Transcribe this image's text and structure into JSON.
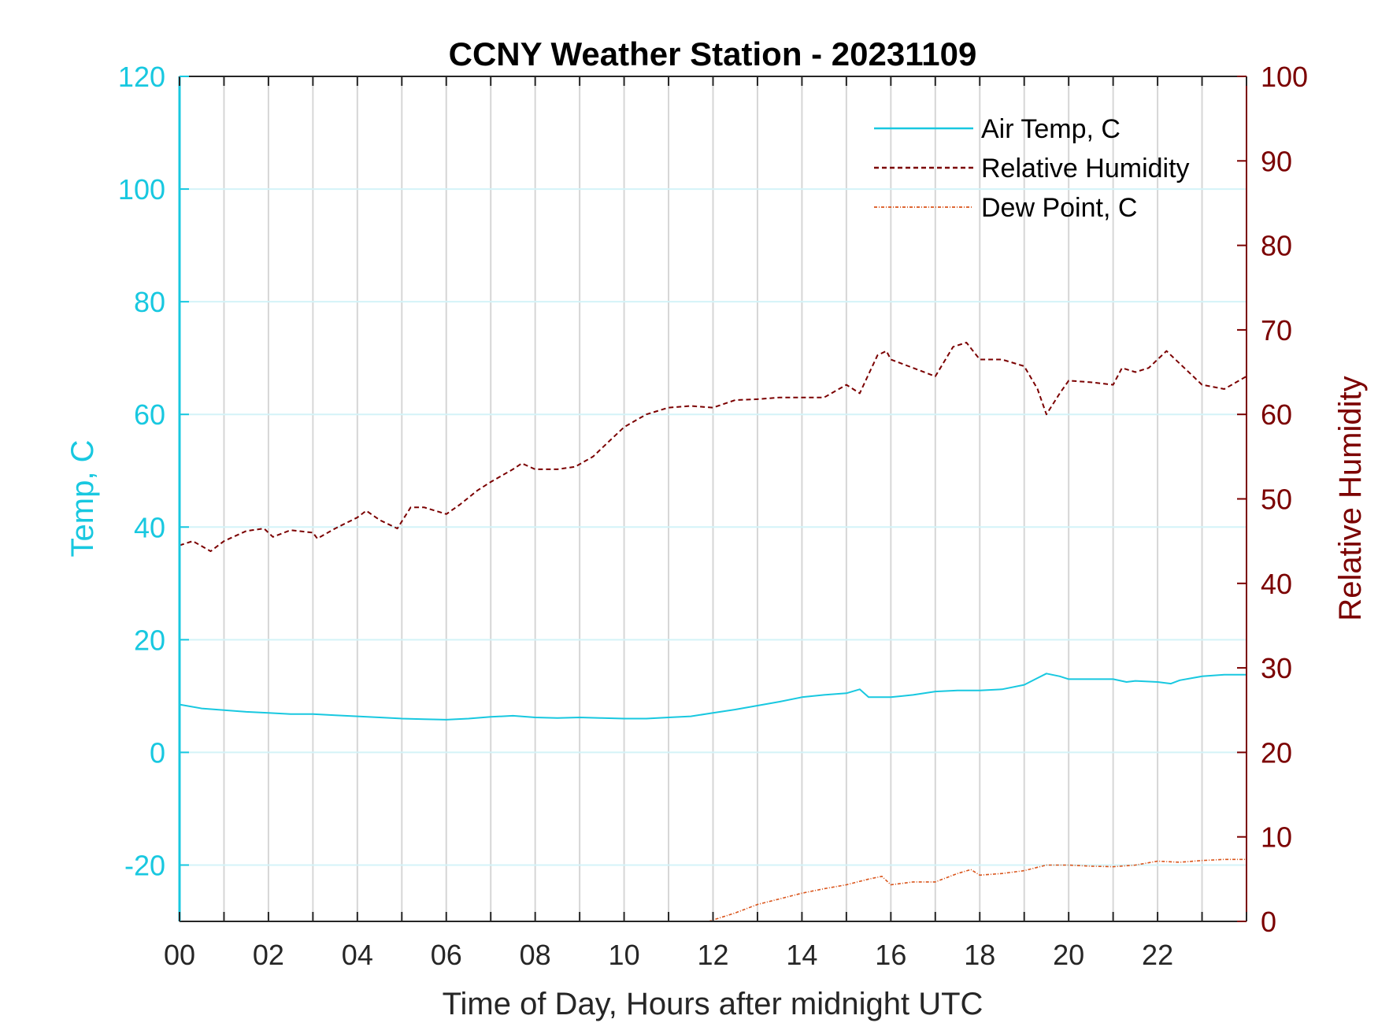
{
  "chart_data": {
    "type": "line",
    "title": "CCNY Weather Station - 20231109",
    "xlabel": "Time of Day, Hours after midnight UTC",
    "ylabel_left": "Temp, C",
    "ylabel_right": "Relative Humidity",
    "xlim": [
      0,
      24
    ],
    "ylim_left": [
      -30,
      120
    ],
    "ylim_right": [
      0,
      100
    ],
    "x_ticks": [
      "00",
      "02",
      "04",
      "06",
      "08",
      "10",
      "12",
      "14",
      "16",
      "18",
      "20",
      "22"
    ],
    "y_ticks_left": [
      "-20",
      "0",
      "20",
      "40",
      "60",
      "80",
      "100",
      "120"
    ],
    "y_ticks_right": [
      "0",
      "10",
      "20",
      "30",
      "40",
      "50",
      "60",
      "70",
      "80",
      "90",
      "100"
    ],
    "grid": {
      "vertical_every_hours": 1,
      "horizontal_left_ticks": true
    },
    "legend_position": "top-right",
    "colors": {
      "air_temp": "#18c8e0",
      "relative_humidity": "#7b0000",
      "dew_point": "#d95319",
      "left_axis": "#18c8e0",
      "right_axis": "#7b0000"
    },
    "series": [
      {
        "name": "Air Temp, C",
        "axis": "left",
        "style": "solid",
        "x": [
          0,
          0.5,
          1,
          1.5,
          2,
          2.5,
          3,
          3.5,
          4,
          4.5,
          5,
          5.5,
          6,
          6.5,
          7,
          7.5,
          8,
          8.5,
          9,
          9.5,
          10,
          10.5,
          11,
          11.5,
          12,
          12.5,
          13,
          13.5,
          14,
          14.5,
          15,
          15.3,
          15.5,
          16,
          16.5,
          17,
          17.5,
          18,
          18.5,
          19,
          19.3,
          19.5,
          19.8,
          20,
          20.5,
          21,
          21.3,
          21.5,
          22,
          22.3,
          22.5,
          23,
          23.5,
          24
        ],
        "y": [
          8.5,
          7.8,
          7.5,
          7.2,
          7.0,
          6.8,
          6.8,
          6.6,
          6.4,
          6.2,
          6.0,
          5.9,
          5.8,
          6.0,
          6.3,
          6.5,
          6.2,
          6.1,
          6.2,
          6.1,
          6.0,
          6.0,
          6.2,
          6.4,
          7.0,
          7.6,
          8.3,
          9.0,
          9.8,
          10.2,
          10.5,
          11.2,
          9.8,
          9.8,
          10.2,
          10.8,
          11.0,
          11.0,
          11.2,
          12.0,
          13.2,
          14.0,
          13.5,
          13.0,
          13.0,
          13.0,
          12.5,
          12.7,
          12.5,
          12.2,
          12.8,
          13.5,
          13.8,
          13.8
        ]
      },
      {
        "name": "Relative Humidity",
        "axis": "right",
        "style": "dashed",
        "x": [
          0,
          0.3,
          0.7,
          1,
          1.5,
          1.9,
          2.1,
          2.5,
          3,
          3.1,
          3.5,
          4,
          4.2,
          4.5,
          4.9,
          5.2,
          5.5,
          6,
          6.3,
          6.7,
          7,
          7.5,
          7.7,
          8,
          8.5,
          8.9,
          9.3,
          9.7,
          10,
          10.5,
          11,
          11.5,
          12,
          12.5,
          13,
          13.5,
          14,
          14.5,
          15,
          15.3,
          15.7,
          15.9,
          16,
          16.5,
          17,
          17.4,
          17.7,
          18,
          18.5,
          19,
          19.3,
          19.5,
          19.8,
          20,
          20.5,
          21,
          21.2,
          21.5,
          21.8,
          22.2,
          22.5,
          22.8,
          23,
          23.5,
          24
        ],
        "y": [
          44.5,
          45.0,
          43.8,
          45.0,
          46.2,
          46.5,
          45.5,
          46.3,
          46.0,
          45.3,
          46.5,
          47.8,
          48.6,
          47.5,
          46.5,
          49.0,
          49.0,
          48.2,
          49.3,
          51.0,
          52.0,
          53.5,
          54.2,
          53.5,
          53.5,
          53.8,
          55.0,
          57.0,
          58.5,
          60.0,
          60.8,
          61.0,
          60.8,
          61.7,
          61.8,
          62.0,
          62.0,
          62.0,
          63.5,
          62.5,
          67.0,
          67.5,
          66.5,
          65.5,
          64.5,
          68.0,
          68.5,
          66.5,
          66.5,
          65.7,
          63.0,
          60.0,
          62.5,
          64.0,
          63.8,
          63.5,
          65.5,
          65.0,
          65.5,
          67.5,
          66.0,
          64.5,
          63.5,
          63.0,
          64.5
        ]
      },
      {
        "name": "Dew Point, C",
        "axis": "left",
        "style": "dash-dot",
        "x": [
          11.9,
          12.5,
          13,
          13.5,
          14,
          14.5,
          15,
          15.5,
          15.8,
          16,
          16.5,
          17,
          17.5,
          17.8,
          18,
          18.5,
          19,
          19.5,
          20,
          20.5,
          21,
          21.5,
          22,
          22.5,
          23,
          23.5,
          24
        ],
        "y": [
          -30.0,
          -28.5,
          -27.0,
          -26.0,
          -25.0,
          -24.2,
          -23.5,
          -22.5,
          -22.0,
          -23.5,
          -23.0,
          -23.0,
          -21.5,
          -20.8,
          -21.8,
          -21.5,
          -21.0,
          -20.0,
          -20.0,
          -20.2,
          -20.3,
          -20.0,
          -19.3,
          -19.5,
          -19.2,
          -19.0,
          -19.0
        ]
      }
    ]
  }
}
